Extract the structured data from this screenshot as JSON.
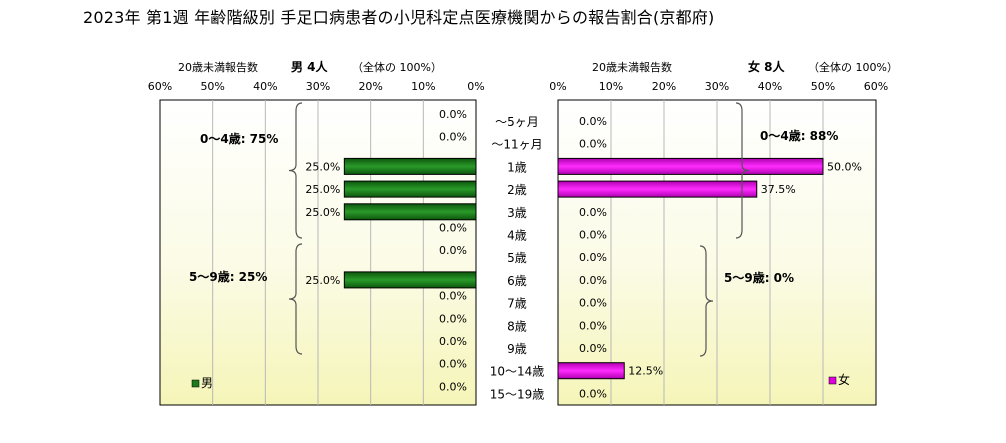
{
  "title": "2023年 第1週  年齢階級別 手足口病患者の小児科定点医療機関からの報告割合(京都府)",
  "chart_data": {
    "type": "bar",
    "orientation": "horizontal",
    "layout": "population-pyramid",
    "categories": [
      "～5ヶ月",
      "～11ヶ月",
      "1歳",
      "2歳",
      "3歳",
      "4歳",
      "5歳",
      "6歳",
      "7歳",
      "8歳",
      "9歳",
      "10～14歳",
      "15～19歳"
    ],
    "xlim": [
      0,
      60
    ],
    "x_ticks": [
      "60%",
      "50%",
      "40%",
      "30%",
      "20%",
      "10%",
      "0%"
    ],
    "x_ticks_right": [
      "0%",
      "10%",
      "20%",
      "30%",
      "40%",
      "50%",
      "60%"
    ],
    "grid": true,
    "series": [
      {
        "name": "男",
        "side": "left",
        "header_label": "20歳未満報告数",
        "header_text": "男  4人",
        "header_note": "（全体の  100%）",
        "color": "#1d7a1d",
        "values": [
          0.0,
          0.0,
          25.0,
          25.0,
          25.0,
          0.0,
          0.0,
          25.0,
          0.0,
          0.0,
          0.0,
          0.0,
          0.0
        ],
        "value_labels": [
          "0.0%",
          "0.0%",
          "25.0%",
          "25.0%",
          "25.0%",
          "0.0%",
          "0.0%",
          "25.0%",
          "0.0%",
          "0.0%",
          "0.0%",
          "0.0%",
          "0.0%"
        ],
        "legend": "男",
        "group_labels": [
          "0～4歳: 75%",
          "5～9歳: 25%"
        ]
      },
      {
        "name": "女",
        "side": "right",
        "header_label": "20歳未満報告数",
        "header_text": "女  8人",
        "header_note": "（全体の  100%）",
        "color": "#dd00dd",
        "values": [
          0.0,
          0.0,
          50.0,
          37.5,
          0.0,
          0.0,
          0.0,
          0.0,
          0.0,
          0.0,
          0.0,
          12.5,
          0.0
        ],
        "value_labels": [
          "0.0%",
          "0.0%",
          "50.0%",
          "37.5%",
          "0.0%",
          "0.0%",
          "0.0%",
          "0.0%",
          "0.0%",
          "0.0%",
          "0.0%",
          "12.5%",
          "0.0%"
        ],
        "legend": "女",
        "group_labels": [
          "0～4歳: 88%",
          "5～9歳: 0%"
        ]
      }
    ]
  }
}
